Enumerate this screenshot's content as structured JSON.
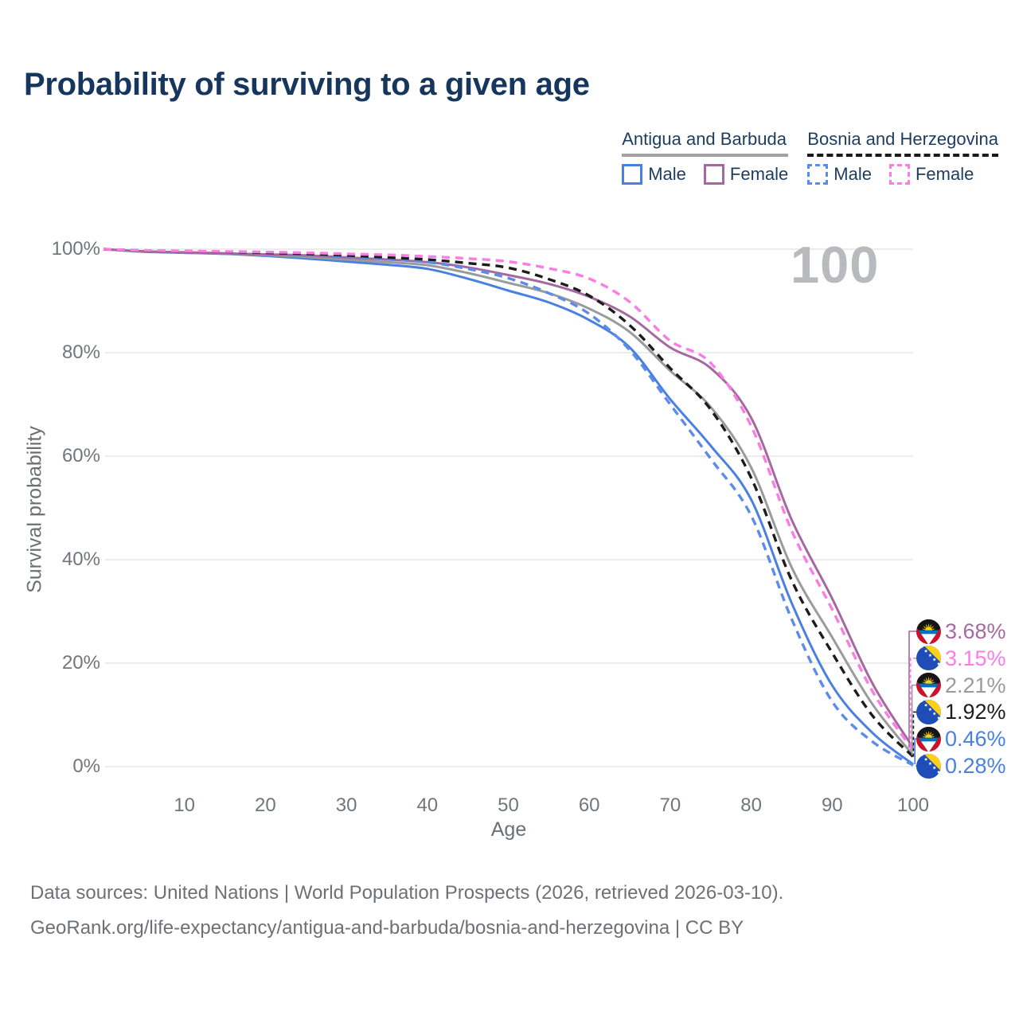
{
  "page": {
    "title": "Probability of surviving to a given age",
    "watermark": "100"
  },
  "legend": {
    "groups": [
      {
        "name": "Antigua and Barbuda",
        "line_style": "solid",
        "underline_color": "#a2a2a2",
        "items": [
          {
            "label": "Male",
            "color": "#4a80e0"
          },
          {
            "label": "Female",
            "color": "#a569a0"
          }
        ]
      },
      {
        "name": "Bosnia and Herzegovina",
        "line_style": "dashed",
        "underline_color": "#1a1a1a",
        "items": [
          {
            "label": "Male",
            "color": "#5b8cea"
          },
          {
            "label": "Female",
            "color": "#fb7ce5"
          }
        ]
      }
    ]
  },
  "axes": {
    "x_label": "Age",
    "y_label": "Survival probability",
    "x_ticks": [
      10,
      20,
      30,
      40,
      50,
      60,
      70,
      80,
      90,
      100
    ],
    "y_ticks": [
      {
        "value": 0,
        "label": "0%"
      },
      {
        "value": 20,
        "label": "20%"
      },
      {
        "value": 40,
        "label": "40%"
      },
      {
        "value": 60,
        "label": "60%"
      },
      {
        "value": 80,
        "label": "80%"
      },
      {
        "value": 100,
        "label": "100%"
      }
    ]
  },
  "chart_data": {
    "type": "line",
    "title": "Probability of surviving to a given age",
    "xlabel": "Age",
    "ylabel": "Survival probability",
    "x_range": [
      0,
      100
    ],
    "y_range_pct": [
      0,
      100
    ],
    "grid": "horizontal-only",
    "legend_position": "top-right",
    "ages": [
      0,
      5,
      10,
      15,
      20,
      25,
      30,
      35,
      40,
      45,
      50,
      55,
      60,
      65,
      70,
      75,
      80,
      85,
      90,
      95,
      100
    ],
    "series": [
      {
        "name": "Antigua and Barbuda — Male",
        "short": "antigua-male",
        "color": "#4a80e0",
        "style": "solid",
        "values": [
          100,
          99.5,
          99.3,
          99.1,
          98.7,
          98.2,
          97.6,
          97.0,
          96.2,
          94.3,
          92.0,
          89.7,
          86.3,
          81.0,
          71.0,
          62.0,
          51.6,
          31.6,
          15.7,
          6.5,
          0.46
        ]
      },
      {
        "name": "Antigua and Barbuda — Both sexes",
        "short": "antigua-both",
        "color": "#9a9b9c",
        "style": "solid",
        "values": [
          100,
          99.55,
          99.35,
          99.15,
          98.85,
          98.5,
          98.0,
          97.5,
          96.9,
          95.4,
          93.5,
          91.5,
          88.5,
          84.0,
          76.5,
          69.5,
          57.8,
          38.5,
          25.0,
          12.0,
          2.21
        ]
      },
      {
        "name": "Antigua and Barbuda — Female",
        "short": "antigua-female",
        "color": "#a569a0",
        "style": "solid",
        "values": [
          100,
          99.6,
          99.4,
          99.2,
          99.0,
          98.8,
          98.4,
          98.0,
          97.5,
          96.5,
          95.0,
          93.3,
          90.8,
          87.0,
          81.0,
          77.0,
          67.4,
          47.7,
          32.5,
          16.0,
          3.68
        ]
      },
      {
        "name": "Bosnia and Herzegovina — Male",
        "short": "bosnia-male",
        "color": "#5b8cea",
        "style": "dashed",
        "values": [
          100,
          99.75,
          99.65,
          99.5,
          99.3,
          99.0,
          98.6,
          98.1,
          97.5,
          96.2,
          94.4,
          91.5,
          87.5,
          80.5,
          70.0,
          59.5,
          48.5,
          28.5,
          12.6,
          4.8,
          0.28
        ]
      },
      {
        "name": "Bosnia and Herzegovina — Both sexes",
        "short": "bosnia-both",
        "color": "#1c1c1c",
        "style": "dashed",
        "values": [
          100,
          99.7,
          99.6,
          99.5,
          99.3,
          99.1,
          98.8,
          98.4,
          98.0,
          97.3,
          96.4,
          94.2,
          91.0,
          85.3,
          77.0,
          69.0,
          55.8,
          36.0,
          22.0,
          9.8,
          1.92
        ]
      },
      {
        "name": "Bosnia and Herzegovina — Female",
        "short": "bosnia-female",
        "color": "#fb7ce5",
        "style": "dashed",
        "values": [
          100,
          99.75,
          99.65,
          99.55,
          99.45,
          99.3,
          99.1,
          98.9,
          98.6,
          98.2,
          97.6,
          96.3,
          94.3,
          89.8,
          82.3,
          78.0,
          65.8,
          45.6,
          30.4,
          14.5,
          3.15
        ]
      }
    ],
    "end_labels": [
      {
        "value": "3.68%",
        "pct": 3.68,
        "series": "antigua-female",
        "flag": "antigua-and-barbuda",
        "color": "#a569a0"
      },
      {
        "value": "3.15%",
        "pct": 3.15,
        "series": "bosnia-female",
        "flag": "bosnia-and-herzegovina",
        "color": "#fb7ce5"
      },
      {
        "value": "2.21%",
        "pct": 2.21,
        "series": "antigua-both",
        "flag": "antigua-and-barbuda",
        "color": "#9a9a9a"
      },
      {
        "value": "1.92%",
        "pct": 1.92,
        "series": "bosnia-both",
        "flag": "bosnia-and-herzegovina",
        "color": "#1d1d1d"
      },
      {
        "value": "0.46%",
        "pct": 0.46,
        "series": "antigua-male",
        "flag": "antigua-and-barbuda",
        "color": "#4a80e0"
      },
      {
        "value": "0.28%",
        "pct": 0.28,
        "series": "bosnia-male",
        "flag": "bosnia-and-herzegovina",
        "color": "#4a80e0"
      }
    ]
  },
  "footer": {
    "line1": "Data sources: United Nations | World Population Prospects (2026, retrieved 2026-03-10).",
    "line2": "GeoRank.org/life-expectancy/antigua-and-barbuda/bosnia-and-herzegovina | CC BY"
  }
}
